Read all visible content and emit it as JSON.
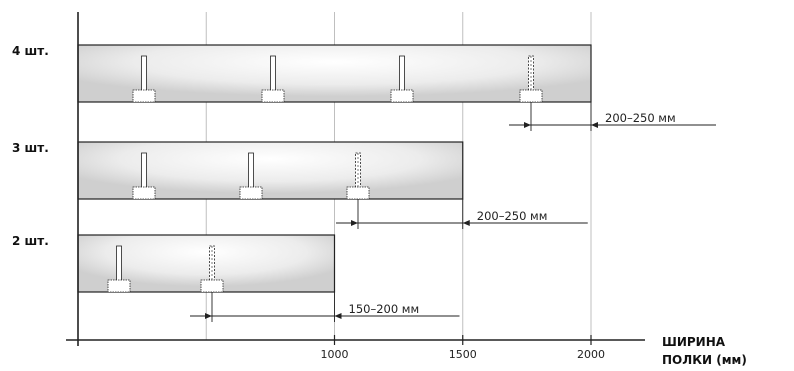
{
  "x_axis": {
    "title_line1": "ШИРИНА",
    "title_line2": "ПОЛКИ (мм)",
    "min": 0,
    "max": 2250,
    "ticks": [
      {
        "value": 1000,
        "label": "1000"
      },
      {
        "value": 1500,
        "label": "1500"
      },
      {
        "value": 2000,
        "label": "2000"
      }
    ],
    "gridlines": [
      500,
      1000,
      1500,
      2000
    ]
  },
  "shelves": [
    {
      "label": "4 шт.",
      "width_mm": 2000,
      "brackets": 4,
      "overhang_label": "200–250 мм"
    },
    {
      "label": "3 шт.",
      "width_mm": 1500,
      "brackets": 3,
      "overhang_label": "200–250 мм"
    },
    {
      "label": "2 шт.",
      "width_mm": 1000,
      "brackets": 2,
      "overhang_label": "150–200 мм"
    }
  ],
  "colors": {
    "line": "#222222",
    "grid": "#bfbfbf",
    "shade": "#d4d4d4"
  }
}
